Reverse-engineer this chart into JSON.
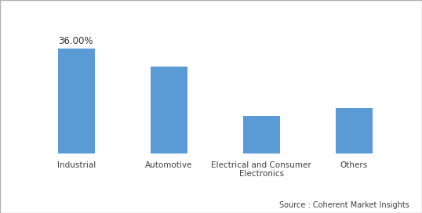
{
  "categories": [
    "Industrial",
    "Automotive",
    "Electrical and Consumer\nElectronics",
    "Others"
  ],
  "values": [
    36.0,
    30.0,
    13.0,
    15.5
  ],
  "bar_color": "#5B9BD5",
  "annotation": "36.00%",
  "annotation_bar_index": 0,
  "ylim": [
    0,
    44
  ],
  "source_text": "Source : Coherent Market Insights",
  "background_color": "#ffffff",
  "bar_width": 0.4,
  "border_color": "#cccccc"
}
